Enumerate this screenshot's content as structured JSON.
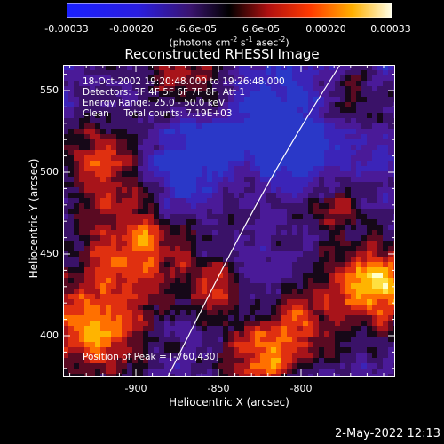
{
  "colorbar": {
    "ticks": [
      "-0.00033",
      "-0.00020",
      "-6.6e-05",
      "6.6e-05",
      "0.00020",
      "0.00033"
    ],
    "unit_label": "(photons cm",
    "unit_sup1": "-2",
    "unit_mid1": " s",
    "unit_sup2": "-1",
    "unit_mid2": " asec",
    "unit_sup3": "-2",
    "unit_end": ")"
  },
  "plot": {
    "title": "Reconstructed RHESSI Image",
    "xlabel": "Heliocentric X (arcsec)",
    "ylabel": "Heliocentric Y (arcsec)",
    "x_ticks": [
      "-900",
      "-850",
      "-800"
    ],
    "y_ticks": [
      "550",
      "500",
      "450",
      "400"
    ],
    "annotations": {
      "time_range": "18-Oct-2002 19:20:48.000 to 19:26:48.000",
      "detectors": "Detectors: 3F 4F 5F 6F 7F 8F, Att 1",
      "energy": "Energy Range: 25.0 - 50.0 keV",
      "clean": "Clean     Total counts: 7.19E+03",
      "peak": "Position of Peak = [-760,430]"
    }
  },
  "timestamp": "2-May-2022 12:13",
  "colors": {
    "background": "#000000",
    "text": "#ffffff",
    "limb": "#ffffff"
  }
}
